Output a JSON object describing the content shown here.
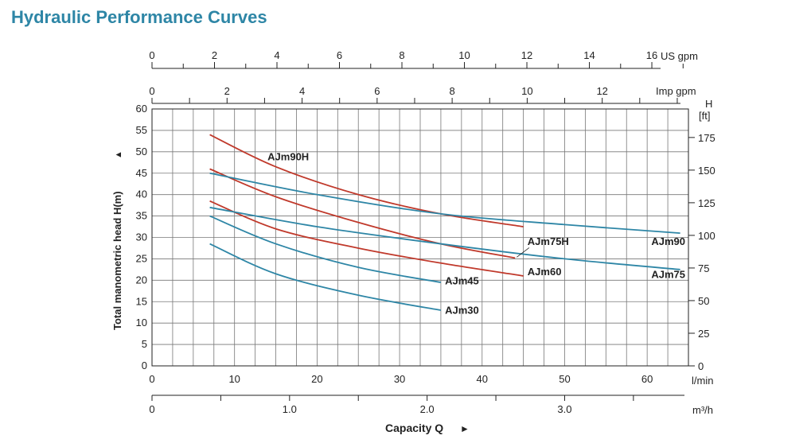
{
  "page": {
    "title": "Hydraulic Performance Curves",
    "title_color": "#2e86a6"
  },
  "chart_data": {
    "type": "line",
    "title": "Hydraulic Performance Curves",
    "xlabel": "Capacity Q",
    "ylabel": "Total manometric head H(m)",
    "xlim": [
      0,
      65
    ],
    "ylim": [
      0,
      60
    ],
    "x_unit": "l/min",
    "y_ticks": [
      0,
      5,
      10,
      15,
      20,
      25,
      30,
      35,
      40,
      45,
      50,
      55,
      60
    ],
    "x_ticks": [
      0,
      10,
      20,
      30,
      40,
      50,
      60
    ],
    "grid": true,
    "secondary_axes": {
      "us_gpm": {
        "label": "US gpm",
        "ticks": [
          0,
          2,
          4,
          6,
          8,
          10,
          12,
          14,
          16
        ]
      },
      "imp_gpm": {
        "label": "Imp gpm",
        "ticks": [
          0,
          2,
          4,
          6,
          8,
          10,
          12
        ]
      },
      "m3h": {
        "label": "m³/h",
        "ticks": [
          "0",
          "1.0",
          "2.0",
          "3.0"
        ]
      },
      "feet": {
        "label": "H",
        "unit": "[ft]",
        "ticks": [
          0,
          25,
          50,
          75,
          100,
          125,
          150,
          175
        ]
      }
    },
    "series": [
      {
        "name": "AJm90H",
        "color": "#c0392b",
        "x": [
          7,
          15,
          25,
          35,
          45
        ],
        "y": [
          54,
          46.5,
          40,
          35.5,
          32.5
        ]
      },
      {
        "name": "AJm75H",
        "color": "#c0392b",
        "x": [
          7,
          15,
          25,
          35,
          44
        ],
        "y": [
          46,
          39.5,
          33.5,
          28.5,
          25.2
        ]
      },
      {
        "name": "AJm60",
        "color": "#c0392b",
        "x": [
          7,
          15,
          25,
          35,
          45
        ],
        "y": [
          38.5,
          32,
          27.5,
          24,
          21
        ]
      },
      {
        "name": "AJm90",
        "color": "#2e86a6",
        "x": [
          7,
          20,
          35,
          50,
          64
        ],
        "y": [
          45,
          40,
          35.5,
          33,
          31
        ]
      },
      {
        "name": "AJm75",
        "color": "#2e86a6",
        "x": [
          7,
          20,
          35,
          50,
          64
        ],
        "y": [
          37,
          32.5,
          28.5,
          25,
          22.5
        ]
      },
      {
        "name": "AJm45",
        "color": "#2e86a6",
        "x": [
          7,
          15,
          25,
          35
        ],
        "y": [
          35,
          28.5,
          23,
          19.5
        ]
      },
      {
        "name": "AJm30",
        "color": "#2e86a6",
        "x": [
          7,
          15,
          25,
          35
        ],
        "y": [
          28.5,
          21.5,
          16.5,
          13
        ]
      }
    ],
    "annotations": [
      "AJm90H",
      "AJm75H",
      "AJm60",
      "AJm90",
      "AJm75",
      "AJm45",
      "AJm30"
    ]
  }
}
